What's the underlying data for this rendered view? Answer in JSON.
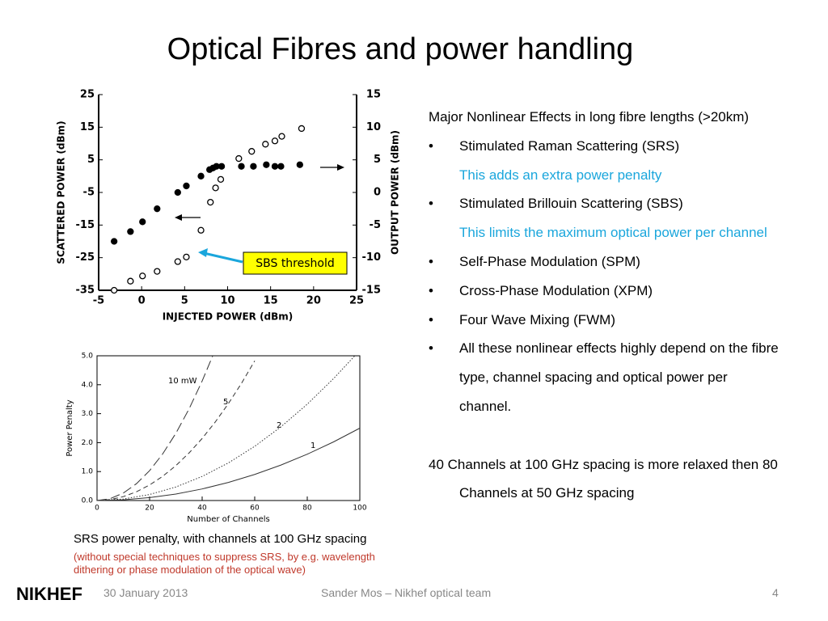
{
  "slide": {
    "title": "Optical Fibres and power handling",
    "intro": "Major Nonlinear Effects in long fibre lengths (>20km)",
    "items": [
      {
        "text": "Stimulated Raman Scattering (SRS)",
        "note": "This adds an extra power penalty"
      },
      {
        "text": "Stimulated Brillouin Scattering (SBS)",
        "note": "This limits the maximum optical power per channel"
      },
      {
        "text": "Self-Phase Modulation (SPM)"
      },
      {
        "text": "Cross-Phase Modulation (XPM)"
      },
      {
        "text": "Four Wave Mixing (FWM)"
      },
      {
        "text": "All these nonlinear effects highly depend on the fibre type, channel spacing and optical power per channel."
      }
    ],
    "conclusion": "40 Channels at 100 GHz spacing is more relaxed then 80 Channels at 50 GHz spacing",
    "caption": "SRS power penalty, with channels at 100 GHz spacing",
    "caption_note": "(without special techniques to suppress SRS, by e.g. wavelength dithering or phase modulation of the optical wave)",
    "logo": "NIKHEF",
    "footer": {
      "date": "30 January 2013",
      "author": "Sander Mos – Nikhef optical team",
      "page": "4"
    }
  },
  "chart_data": [
    {
      "type": "scatter",
      "x_label": "INJECTED POWER (dBm)",
      "y_label": "SCATTERED POWER (dBm)",
      "y2_label": "OUTPUT POWER (dBm)",
      "annotation": "SBS threshold",
      "xlim": [
        -5,
        25
      ],
      "xticks": [
        -5,
        0,
        5,
        10,
        15,
        20,
        25
      ],
      "ylim": [
        -35,
        25
      ],
      "yticks": [
        -35,
        -25,
        -15,
        -5,
        5,
        15,
        25
      ],
      "y2lim": [
        -15,
        15
      ],
      "y2ticks": [
        -15,
        -10,
        -5,
        0,
        5,
        10,
        15
      ],
      "series": [
        {
          "marker": "filled",
          "color": "#000000",
          "x": [
            -3.2,
            -1.3,
            0.1,
            1.8,
            4.2,
            5.2,
            6.9,
            7.9,
            8.3,
            8.7,
            9.3,
            11.6,
            13,
            14.5,
            15.5,
            16.2,
            18.4
          ],
          "values": [
            -20,
            -17,
            -14,
            -10,
            -5,
            -3,
            0,
            2,
            2.5,
            3,
            3,
            3,
            3,
            3.5,
            3,
            3,
            3.5
          ]
        },
        {
          "marker": "hollow",
          "color": "#000000",
          "axis": "y2",
          "x": [
            -3.2,
            -1.3,
            0.1,
            1.8,
            4.2,
            5.2,
            6.9,
            8,
            8.6,
            9.2,
            11.3,
            12.8,
            14.4,
            15.5,
            16.3,
            18.6
          ],
          "values": [
            -15,
            -13.6,
            -12.8,
            -12.1,
            -10.6,
            -9.9,
            -5.8,
            -1.5,
            0.7,
            2,
            5.2,
            6.3,
            7.4,
            7.9,
            8.6,
            9.8
          ]
        }
      ]
    },
    {
      "type": "line",
      "x_label": "Number of Channels",
      "y_label": "Power Penalty",
      "xlim": [
        0,
        100
      ],
      "xticks": [
        0,
        20,
        40,
        60,
        80,
        100
      ],
      "ylim": [
        0,
        5
      ],
      "yticks": [
        {
          "value": 0,
          "label": "0.0"
        },
        {
          "value": 1,
          "label": "1.0"
        },
        {
          "value": 2,
          "label": "2.0"
        },
        {
          "value": 3,
          "label": "3.0"
        },
        {
          "value": 4,
          "label": "4.0"
        },
        {
          "value": 5,
          "label": "5.0"
        }
      ],
      "series": [
        {
          "name": "10 mW",
          "color": "#333333",
          "style": "longdash",
          "x": [
            0,
            5,
            10,
            15,
            20,
            25,
            30,
            35,
            40,
            44
          ],
          "values": [
            0,
            0.0645,
            0.258,
            0.5805,
            1.032,
            1.6125,
            2.322,
            3.1605,
            4.128,
            4.995
          ]
        },
        {
          "name": "5",
          "color": "#333333",
          "style": "dashed",
          "x": [
            0,
            5,
            10,
            15,
            20,
            25,
            30,
            35,
            40,
            45,
            50,
            55,
            60
          ],
          "values": [
            0,
            0.0335,
            0.134,
            0.3015,
            0.536,
            0.8375,
            1.206,
            1.6415,
            2.144,
            2.7135,
            3.35,
            4.0535,
            4.824
          ]
        },
        {
          "name": "2",
          "color": "#333333",
          "style": "dotted",
          "x": [
            0,
            10,
            20,
            30,
            40,
            50,
            60,
            70,
            80,
            90,
            98
          ],
          "values": [
            0,
            0.052,
            0.208,
            0.468,
            0.832,
            1.3,
            1.872,
            2.548,
            3.328,
            4.212,
            4.99
          ]
        },
        {
          "name": "1",
          "color": "#333333",
          "style": "solid",
          "x": [
            0,
            10,
            20,
            30,
            40,
            50,
            60,
            70,
            80,
            90,
            100
          ],
          "values": [
            0,
            0.025,
            0.1,
            0.225,
            0.4,
            0.625,
            0.9,
            1.225,
            1.6,
            2.025,
            2.5
          ]
        }
      ]
    }
  ]
}
